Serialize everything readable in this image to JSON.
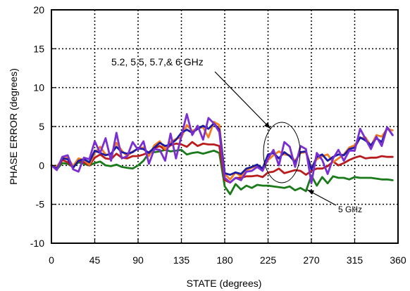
{
  "chart_data": {
    "type": "line",
    "title": "",
    "xlabel": "STATE (degrees)",
    "ylabel": "PHASE ERROR  (degrees)",
    "xlim": [
      0,
      360
    ],
    "ylim": [
      -10,
      20
    ],
    "xticks": [
      0,
      45,
      90,
      135,
      180,
      225,
      270,
      315,
      360
    ],
    "yticks": [
      -10,
      -5,
      0,
      5,
      10,
      15,
      20
    ],
    "grid": true,
    "legend": "none",
    "annotations": [
      {
        "text": "5.2, 5.5, 5.7,& 6 GHz",
        "points_to": {
          "x": 240,
          "y": 1
        }
      },
      {
        "text": "5 GHz",
        "points_to": {
          "x": 270,
          "y": -2
        }
      }
    ],
    "x": [
      0,
      5.625,
      11.25,
      16.875,
      22.5,
      28.125,
      33.75,
      39.375,
      45,
      50.625,
      56.25,
      61.875,
      67.5,
      73.125,
      78.75,
      84.375,
      90,
      95.625,
      101.25,
      106.875,
      112.5,
      118.125,
      123.75,
      129.375,
      135,
      140.625,
      146.25,
      151.875,
      157.5,
      163.125,
      168.75,
      174.375,
      180,
      185.625,
      191.25,
      196.875,
      202.5,
      208.125,
      213.75,
      219.375,
      225,
      230.625,
      236.25,
      241.875,
      247.5,
      253.125,
      258.75,
      264.375,
      270,
      275.625,
      281.25,
      286.875,
      292.5,
      298.125,
      303.75,
      309.375,
      315,
      320.625,
      326.25,
      331.875,
      337.5,
      343.125,
      348.75,
      354.375
    ],
    "series": [
      {
        "color": "#1a7a1a",
        "values": [
          0.0,
          -0.5,
          0.3,
          0.2,
          -0.2,
          0.4,
          0.2,
          0.0,
          0.3,
          0.5,
          0.0,
          -0.1,
          0.1,
          -0.2,
          -0.3,
          -0.4,
          0.0,
          0.6,
          1.6,
          1.7,
          1.8,
          2.0,
          1.8,
          1.9,
          2.0,
          1.4,
          1.6,
          1.7,
          1.5,
          1.7,
          1.9,
          1.6,
          -2.7,
          -3.7,
          -2.4,
          -3.1,
          -2.6,
          -2.9,
          -2.5,
          -2.6,
          -2.6,
          -2.7,
          -2.8,
          -2.9,
          -2.7,
          -3.2,
          -2.9,
          -3.3,
          -1.3,
          -2.6,
          -1.5,
          -2.3,
          -1.4,
          -1.6,
          -1.6,
          -1.8,
          -1.5,
          -1.6,
          -1.6,
          -1.6,
          -1.7,
          -1.8,
          -1.8,
          -1.9
        ]
      },
      {
        "color": "#b81c1c",
        "values": [
          0.0,
          -0.4,
          0.7,
          0.4,
          -0.3,
          0.6,
          0.4,
          0.0,
          1.0,
          1.4,
          0.9,
          0.8,
          1.5,
          1.0,
          0.9,
          1.2,
          1.2,
          1.4,
          1.7,
          2.2,
          2.5,
          2.0,
          2.6,
          2.8,
          2.7,
          2.4,
          3.0,
          2.5,
          2.8,
          2.7,
          2.7,
          2.5,
          -1.9,
          -2.2,
          -1.6,
          -1.6,
          -1.4,
          -1.4,
          -1.3,
          -1.5,
          -0.9,
          -0.8,
          -0.4,
          -1.0,
          -0.8,
          -0.6,
          -0.7,
          -1.2,
          -0.7,
          -0.4,
          -0.4,
          -0.1,
          0.5,
          0.0,
          0.3,
          0.7,
          1.0,
          1.2,
          0.9,
          1.0,
          1.0,
          1.2,
          1.1,
          1.1
        ]
      },
      {
        "color": "#f47c20",
        "values": [
          0.0,
          -0.2,
          0.9,
          1.0,
          -0.1,
          0.9,
          0.7,
          0.1,
          1.6,
          2.4,
          1.4,
          1.3,
          2.9,
          1.9,
          1.2,
          1.8,
          2.1,
          2.3,
          1.2,
          2.6,
          3.1,
          2.1,
          3.0,
          3.4,
          3.6,
          5.2,
          4.4,
          4.8,
          4.9,
          3.6,
          5.6,
          5.2,
          -1.1,
          -1.8,
          -0.9,
          -1.4,
          -0.6,
          -0.3,
          0.0,
          -0.5,
          0.7,
          1.3,
          1.8,
          1.4,
          1.3,
          0.6,
          1.6,
          1.7,
          -0.3,
          0.8,
          1.2,
          1.4,
          0.4,
          0.9,
          1.4,
          2.3,
          2.6,
          3.5,
          3.6,
          2.5,
          3.9,
          3.7,
          4.7,
          4.5
        ]
      },
      {
        "color": "#1c1c9e",
        "values": [
          0.0,
          -0.4,
          0.9,
          0.8,
          -0.3,
          0.6,
          0.8,
          0.4,
          1.9,
          1.6,
          1.3,
          1.5,
          2.4,
          1.7,
          1.5,
          1.7,
          2.2,
          2.1,
          1.6,
          2.3,
          2.9,
          2.5,
          2.7,
          3.3,
          4.2,
          4.6,
          4.2,
          4.7,
          5.1,
          4.7,
          5.4,
          4.6,
          -1.0,
          -1.2,
          -0.9,
          -1.1,
          -0.4,
          -0.2,
          0.1,
          -0.4,
          1.4,
          1.6,
          0.9,
          1.7,
          1.2,
          0.4,
          1.7,
          1.8,
          -0.5,
          1.1,
          1.4,
          0.6,
          1.1,
          1.4,
          1.3,
          2.1,
          2.3,
          3.6,
          3.2,
          2.6,
          3.5,
          3.0,
          4.9,
          3.9
        ]
      },
      {
        "color": "#7b2fd1",
        "values": [
          0.0,
          -0.6,
          1.1,
          1.3,
          -0.5,
          -0.8,
          1.0,
          0.8,
          3.1,
          1.6,
          3.5,
          0.6,
          4.2,
          0.9,
          1.2,
          3.0,
          2.0,
          3.1,
          0.2,
          2.1,
          2.0,
          0.6,
          4.1,
          0.9,
          3.8,
          6.6,
          3.9,
          5.1,
          3.3,
          6.1,
          5.4,
          4.3,
          -1.6,
          -2.2,
          -1.6,
          -1.9,
          -0.8,
          -0.7,
          -0.2,
          -0.7,
          0.9,
          2.0,
          0.0,
          3.0,
          2.4,
          -0.2,
          2.5,
          2.1,
          -2.3,
          1.6,
          0.7,
          -1.1,
          0.9,
          2.0,
          0.6,
          1.9,
          1.9,
          4.7,
          3.4,
          2.1,
          3.7,
          2.5,
          4.9,
          3.9
        ]
      }
    ]
  }
}
